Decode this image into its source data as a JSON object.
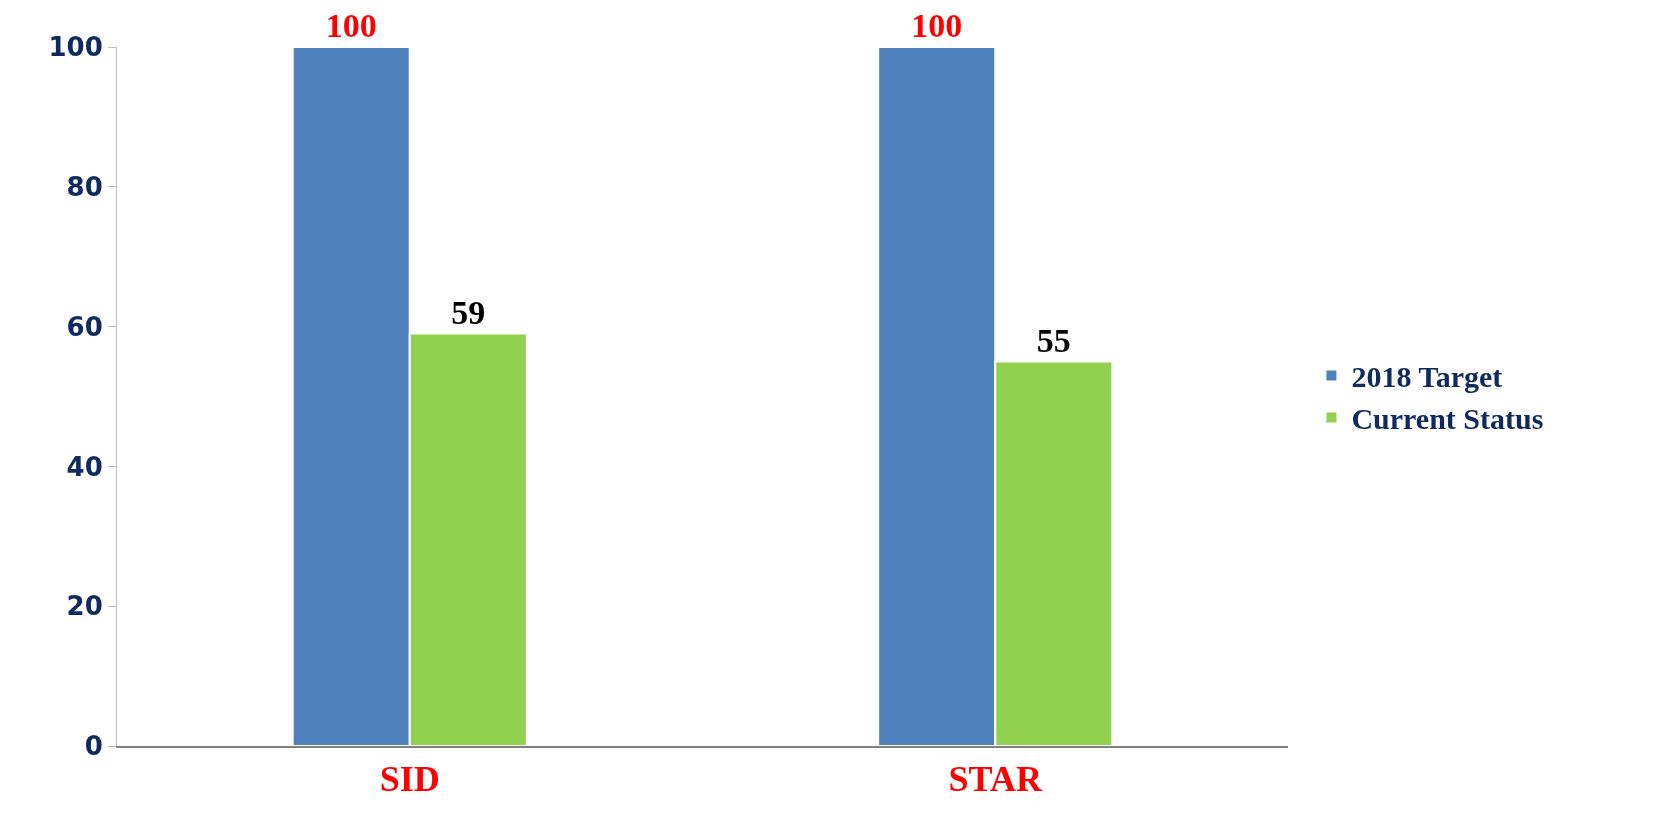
{
  "chart_data": {
    "type": "bar",
    "categories": [
      "SID",
      "STAR"
    ],
    "series": [
      {
        "name": "2018 Target",
        "color": "#4f81bd",
        "values": [
          100,
          100
        ]
      },
      {
        "name": "Current Status",
        "color": "#92d050",
        "values": [
          59,
          55
        ]
      }
    ],
    "ylim": [
      0,
      100
    ],
    "yticks": [
      0,
      20,
      40,
      60,
      80,
      100
    ],
    "legend": "right",
    "data_labels": true
  }
}
